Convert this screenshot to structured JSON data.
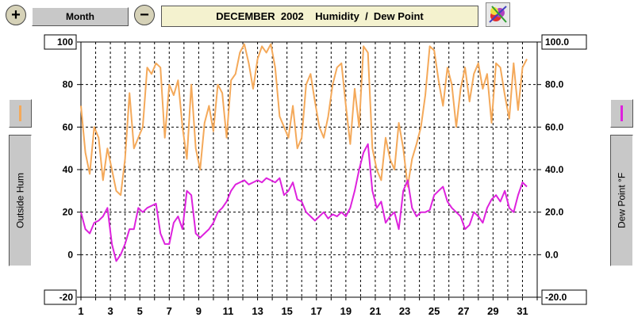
{
  "toolbar": {
    "zoom_in_label": "+",
    "period_label": "Month",
    "zoom_out_label": "−",
    "title": "DECEMBER  2002    Humidity  /  Dew Point"
  },
  "left_panel": {
    "label": "Outside Hum",
    "color": "#f4a95a"
  },
  "right_panel": {
    "label": "Dew Point °F",
    "color": "#dd22dd"
  },
  "chart_data": {
    "type": "line",
    "title": "DECEMBER  2002    Humidity  /  Dew Point",
    "x_ticks": [
      "1",
      "3",
      "5",
      "7",
      "9",
      "11",
      "13",
      "15",
      "17",
      "19",
      "21",
      "23",
      "25",
      "27",
      "29",
      "31"
    ],
    "xlim": [
      1,
      32
    ],
    "left_axis": {
      "label": "Outside Hum",
      "ylim": [
        -20,
        100
      ],
      "ticks": [
        "100",
        "80",
        "60",
        "40",
        "20",
        "0",
        "-20"
      ]
    },
    "right_axis": {
      "label": "Dew Point °F",
      "ylim": [
        -20,
        100
      ],
      "ticks": [
        "100.0",
        "80.0",
        "60.0",
        "40.0",
        "20.0",
        "0.0",
        "-20.0"
      ]
    },
    "grid": true,
    "series": [
      {
        "name": "Outside Hum",
        "color": "#f4a95a",
        "axis": "left",
        "x": [
          1.0,
          1.3,
          1.6,
          1.9,
          2.2,
          2.5,
          2.8,
          3.1,
          3.4,
          3.7,
          4.0,
          4.3,
          4.6,
          4.9,
          5.2,
          5.5,
          5.8,
          6.1,
          6.4,
          6.7,
          7.0,
          7.3,
          7.6,
          7.9,
          8.2,
          8.5,
          8.8,
          9.1,
          9.4,
          9.7,
          10.0,
          10.3,
          10.6,
          10.9,
          11.2,
          11.5,
          11.8,
          12.1,
          12.4,
          12.7,
          13.0,
          13.3,
          13.6,
          13.9,
          14.2,
          14.5,
          14.8,
          15.1,
          15.4,
          15.7,
          16.0,
          16.3,
          16.6,
          16.9,
          17.2,
          17.5,
          17.8,
          18.1,
          18.4,
          18.7,
          19.0,
          19.3,
          19.6,
          19.9,
          20.2,
          20.5,
          20.8,
          21.1,
          21.4,
          21.7,
          22.0,
          22.3,
          22.6,
          22.9,
          23.2,
          23.5,
          23.8,
          24.1,
          24.4,
          24.7,
          25.0,
          25.3,
          25.6,
          25.9,
          26.2,
          26.5,
          26.8,
          27.1,
          27.4,
          27.7,
          28.0,
          28.3,
          28.6,
          28.9,
          29.2,
          29.5,
          29.8,
          30.1,
          30.4,
          30.7,
          31.0,
          31.3
        ],
        "values": [
          70,
          48,
          38,
          60,
          55,
          35,
          50,
          40,
          30,
          28,
          45,
          76,
          50,
          55,
          60,
          88,
          85,
          90,
          88,
          55,
          80,
          75,
          82,
          60,
          45,
          80,
          50,
          40,
          62,
          70,
          58,
          80,
          76,
          55,
          82,
          85,
          95,
          99,
          90,
          78,
          92,
          98,
          95,
          99,
          88,
          65,
          60,
          55,
          70,
          50,
          55,
          80,
          85,
          72,
          60,
          55,
          65,
          80,
          88,
          90,
          70,
          52,
          78,
          60,
          98,
          95,
          50,
          40,
          35,
          55,
          45,
          40,
          62,
          50,
          32,
          45,
          52,
          60,
          75,
          98,
          96,
          82,
          70,
          88,
          80,
          60,
          78,
          88,
          72,
          85,
          90,
          78,
          85,
          62,
          90,
          88,
          75,
          64,
          90,
          68,
          88,
          92
        ]
      },
      {
        "name": "Dew Point °F",
        "color": "#dd22dd",
        "axis": "right",
        "x": [
          1.0,
          1.3,
          1.6,
          1.9,
          2.2,
          2.5,
          2.8,
          3.1,
          3.4,
          3.7,
          4.0,
          4.3,
          4.6,
          4.9,
          5.2,
          5.5,
          5.8,
          6.1,
          6.4,
          6.7,
          7.0,
          7.3,
          7.6,
          7.9,
          8.2,
          8.5,
          8.8,
          9.1,
          9.4,
          9.7,
          10.0,
          10.3,
          10.6,
          10.9,
          11.2,
          11.5,
          11.8,
          12.1,
          12.4,
          12.7,
          13.0,
          13.3,
          13.6,
          13.9,
          14.2,
          14.5,
          14.8,
          15.1,
          15.4,
          15.7,
          16.0,
          16.3,
          16.6,
          16.9,
          17.2,
          17.5,
          17.8,
          18.1,
          18.4,
          18.7,
          19.0,
          19.3,
          19.6,
          19.9,
          20.2,
          20.5,
          20.8,
          21.1,
          21.4,
          21.7,
          22.0,
          22.3,
          22.6,
          22.9,
          23.2,
          23.5,
          23.8,
          24.1,
          24.4,
          24.7,
          25.0,
          25.3,
          25.6,
          25.9,
          26.2,
          26.5,
          26.8,
          27.1,
          27.4,
          27.7,
          28.0,
          28.3,
          28.6,
          28.9,
          29.2,
          29.5,
          29.8,
          30.1,
          30.4,
          30.7,
          31.0,
          31.3
        ],
        "values": [
          20,
          12,
          10,
          15,
          16,
          18,
          22,
          5,
          -3,
          0,
          5,
          12,
          12,
          22,
          20,
          22,
          23,
          24,
          10,
          5,
          5,
          15,
          18,
          12,
          30,
          28,
          10,
          8,
          10,
          12,
          15,
          20,
          22,
          25,
          30,
          33,
          34,
          35,
          33,
          34,
          35,
          34,
          36,
          35,
          34,
          36,
          28,
          30,
          34,
          26,
          25,
          20,
          18,
          16,
          18,
          20,
          17,
          19,
          18,
          20,
          18,
          22,
          30,
          40,
          48,
          52,
          30,
          22,
          25,
          15,
          18,
          20,
          12,
          30,
          35,
          22,
          18,
          20,
          20,
          21,
          28,
          30,
          32,
          25,
          22,
          20,
          18,
          12,
          14,
          20,
          18,
          15,
          22,
          26,
          28,
          25,
          30,
          22,
          20,
          28,
          34,
          32
        ]
      }
    ]
  }
}
